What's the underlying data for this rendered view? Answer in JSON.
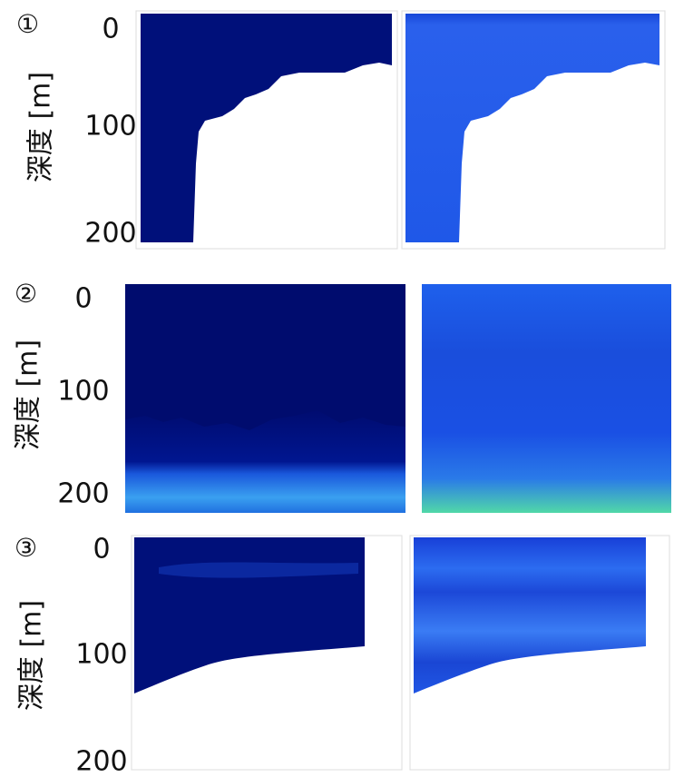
{
  "panels": [
    {
      "label": "①",
      "axis_title": "深度 [m]",
      "ticks": [
        "0",
        "100",
        "200"
      ]
    },
    {
      "label": "②",
      "axis_title": "深度 [m]",
      "ticks": [
        "0",
        "100",
        "200"
      ]
    },
    {
      "label": "③",
      "axis_title": "深度 [m]",
      "ticks": [
        "0",
        "100",
        "200"
      ]
    }
  ]
}
